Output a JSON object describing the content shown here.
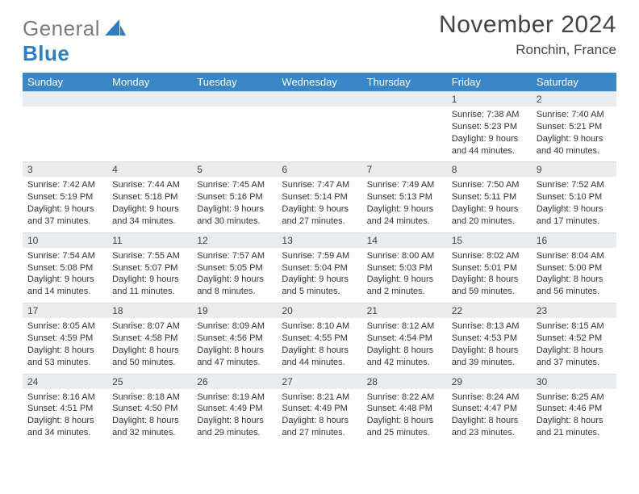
{
  "logo": {
    "word1": "General",
    "word2": "Blue"
  },
  "header": {
    "month": "November 2024",
    "location": "Ronchin, France"
  },
  "colors": {
    "header_bg": "#3a87c8",
    "daynum_bg": "#e9ecef",
    "logo_gray": "#7d7d7d",
    "logo_blue": "#2f7dc2"
  },
  "daynames": [
    "Sunday",
    "Monday",
    "Tuesday",
    "Wednesday",
    "Thursday",
    "Friday",
    "Saturday"
  ],
  "weeks": [
    [
      {
        "n": "",
        "sunrise": "",
        "sunset": "",
        "daylight": ""
      },
      {
        "n": "",
        "sunrise": "",
        "sunset": "",
        "daylight": ""
      },
      {
        "n": "",
        "sunrise": "",
        "sunset": "",
        "daylight": ""
      },
      {
        "n": "",
        "sunrise": "",
        "sunset": "",
        "daylight": ""
      },
      {
        "n": "",
        "sunrise": "",
        "sunset": "",
        "daylight": ""
      },
      {
        "n": "1",
        "sunrise": "Sunrise: 7:38 AM",
        "sunset": "Sunset: 5:23 PM",
        "daylight": "Daylight: 9 hours and 44 minutes."
      },
      {
        "n": "2",
        "sunrise": "Sunrise: 7:40 AM",
        "sunset": "Sunset: 5:21 PM",
        "daylight": "Daylight: 9 hours and 40 minutes."
      }
    ],
    [
      {
        "n": "3",
        "sunrise": "Sunrise: 7:42 AM",
        "sunset": "Sunset: 5:19 PM",
        "daylight": "Daylight: 9 hours and 37 minutes."
      },
      {
        "n": "4",
        "sunrise": "Sunrise: 7:44 AM",
        "sunset": "Sunset: 5:18 PM",
        "daylight": "Daylight: 9 hours and 34 minutes."
      },
      {
        "n": "5",
        "sunrise": "Sunrise: 7:45 AM",
        "sunset": "Sunset: 5:16 PM",
        "daylight": "Daylight: 9 hours and 30 minutes."
      },
      {
        "n": "6",
        "sunrise": "Sunrise: 7:47 AM",
        "sunset": "Sunset: 5:14 PM",
        "daylight": "Daylight: 9 hours and 27 minutes."
      },
      {
        "n": "7",
        "sunrise": "Sunrise: 7:49 AM",
        "sunset": "Sunset: 5:13 PM",
        "daylight": "Daylight: 9 hours and 24 minutes."
      },
      {
        "n": "8",
        "sunrise": "Sunrise: 7:50 AM",
        "sunset": "Sunset: 5:11 PM",
        "daylight": "Daylight: 9 hours and 20 minutes."
      },
      {
        "n": "9",
        "sunrise": "Sunrise: 7:52 AM",
        "sunset": "Sunset: 5:10 PM",
        "daylight": "Daylight: 9 hours and 17 minutes."
      }
    ],
    [
      {
        "n": "10",
        "sunrise": "Sunrise: 7:54 AM",
        "sunset": "Sunset: 5:08 PM",
        "daylight": "Daylight: 9 hours and 14 minutes."
      },
      {
        "n": "11",
        "sunrise": "Sunrise: 7:55 AM",
        "sunset": "Sunset: 5:07 PM",
        "daylight": "Daylight: 9 hours and 11 minutes."
      },
      {
        "n": "12",
        "sunrise": "Sunrise: 7:57 AM",
        "sunset": "Sunset: 5:05 PM",
        "daylight": "Daylight: 9 hours and 8 minutes."
      },
      {
        "n": "13",
        "sunrise": "Sunrise: 7:59 AM",
        "sunset": "Sunset: 5:04 PM",
        "daylight": "Daylight: 9 hours and 5 minutes."
      },
      {
        "n": "14",
        "sunrise": "Sunrise: 8:00 AM",
        "sunset": "Sunset: 5:03 PM",
        "daylight": "Daylight: 9 hours and 2 minutes."
      },
      {
        "n": "15",
        "sunrise": "Sunrise: 8:02 AM",
        "sunset": "Sunset: 5:01 PM",
        "daylight": "Daylight: 8 hours and 59 minutes."
      },
      {
        "n": "16",
        "sunrise": "Sunrise: 8:04 AM",
        "sunset": "Sunset: 5:00 PM",
        "daylight": "Daylight: 8 hours and 56 minutes."
      }
    ],
    [
      {
        "n": "17",
        "sunrise": "Sunrise: 8:05 AM",
        "sunset": "Sunset: 4:59 PM",
        "daylight": "Daylight: 8 hours and 53 minutes."
      },
      {
        "n": "18",
        "sunrise": "Sunrise: 8:07 AM",
        "sunset": "Sunset: 4:58 PM",
        "daylight": "Daylight: 8 hours and 50 minutes."
      },
      {
        "n": "19",
        "sunrise": "Sunrise: 8:09 AM",
        "sunset": "Sunset: 4:56 PM",
        "daylight": "Daylight: 8 hours and 47 minutes."
      },
      {
        "n": "20",
        "sunrise": "Sunrise: 8:10 AM",
        "sunset": "Sunset: 4:55 PM",
        "daylight": "Daylight: 8 hours and 44 minutes."
      },
      {
        "n": "21",
        "sunrise": "Sunrise: 8:12 AM",
        "sunset": "Sunset: 4:54 PM",
        "daylight": "Daylight: 8 hours and 42 minutes."
      },
      {
        "n": "22",
        "sunrise": "Sunrise: 8:13 AM",
        "sunset": "Sunset: 4:53 PM",
        "daylight": "Daylight: 8 hours and 39 minutes."
      },
      {
        "n": "23",
        "sunrise": "Sunrise: 8:15 AM",
        "sunset": "Sunset: 4:52 PM",
        "daylight": "Daylight: 8 hours and 37 minutes."
      }
    ],
    [
      {
        "n": "24",
        "sunrise": "Sunrise: 8:16 AM",
        "sunset": "Sunset: 4:51 PM",
        "daylight": "Daylight: 8 hours and 34 minutes."
      },
      {
        "n": "25",
        "sunrise": "Sunrise: 8:18 AM",
        "sunset": "Sunset: 4:50 PM",
        "daylight": "Daylight: 8 hours and 32 minutes."
      },
      {
        "n": "26",
        "sunrise": "Sunrise: 8:19 AM",
        "sunset": "Sunset: 4:49 PM",
        "daylight": "Daylight: 8 hours and 29 minutes."
      },
      {
        "n": "27",
        "sunrise": "Sunrise: 8:21 AM",
        "sunset": "Sunset: 4:49 PM",
        "daylight": "Daylight: 8 hours and 27 minutes."
      },
      {
        "n": "28",
        "sunrise": "Sunrise: 8:22 AM",
        "sunset": "Sunset: 4:48 PM",
        "daylight": "Daylight: 8 hours and 25 minutes."
      },
      {
        "n": "29",
        "sunrise": "Sunrise: 8:24 AM",
        "sunset": "Sunset: 4:47 PM",
        "daylight": "Daylight: 8 hours and 23 minutes."
      },
      {
        "n": "30",
        "sunrise": "Sunrise: 8:25 AM",
        "sunset": "Sunset: 4:46 PM",
        "daylight": "Daylight: 8 hours and 21 minutes."
      }
    ]
  ]
}
